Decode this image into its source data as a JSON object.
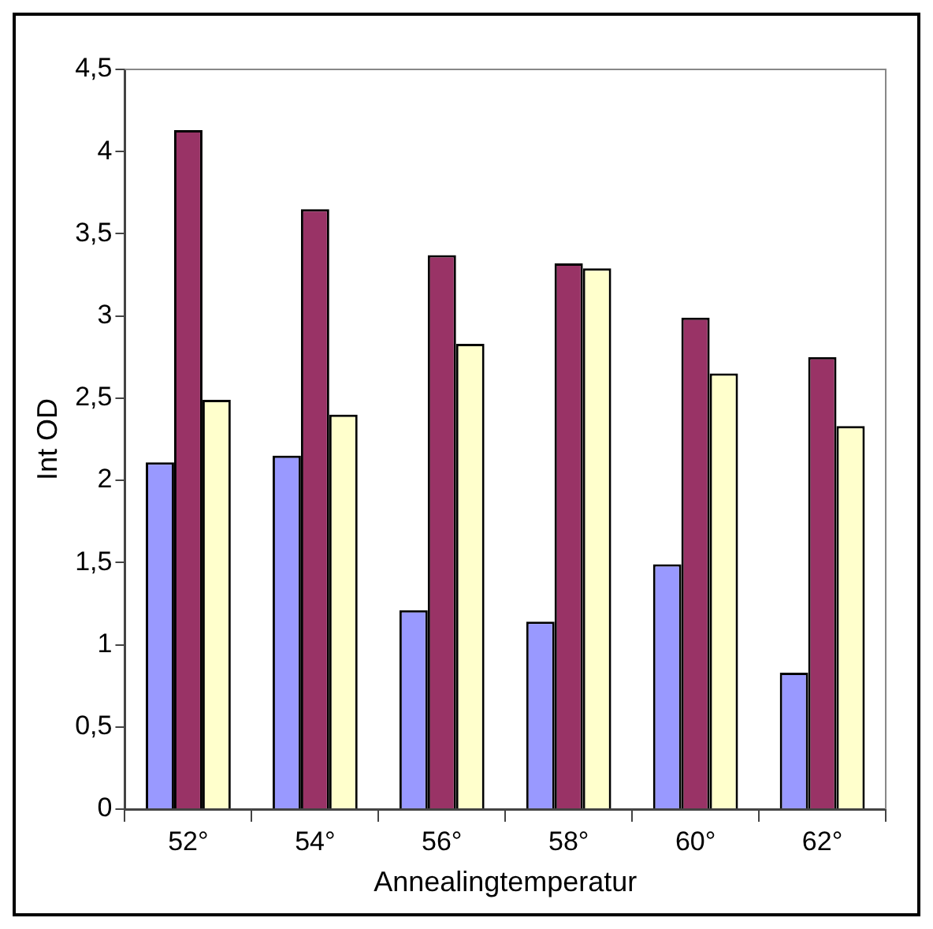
{
  "chart_data": {
    "type": "bar",
    "xlabel": "Annealingtemperatur",
    "ylabel": "Int OD",
    "categories": [
      "52°",
      "54°",
      "56°",
      "58°",
      "60°",
      "62°"
    ],
    "series": [
      {
        "color": "#9999ff",
        "values": [
          2.11,
          2.15,
          1.21,
          1.14,
          1.49,
          0.83
        ]
      },
      {
        "color": "#993366",
        "values": [
          4.13,
          3.65,
          3.37,
          3.32,
          2.99,
          2.75
        ]
      },
      {
        "color": "#ffffcc",
        "values": [
          2.49,
          2.4,
          2.83,
          3.29,
          2.65,
          2.33
        ]
      }
    ],
    "ylim": [
      0,
      4.5
    ],
    "yticks": [
      0,
      {
        "value": 0.5,
        "label": "0,5"
      },
      1,
      {
        "value": 1.5,
        "label": "1,5"
      },
      2,
      {
        "value": 2.5,
        "label": "2,5"
      },
      3,
      {
        "value": 3.5,
        "label": "3,5"
      },
      4,
      {
        "value": 4.5,
        "label": "4,5"
      }
    ],
    "grid": false,
    "legend": false
  }
}
